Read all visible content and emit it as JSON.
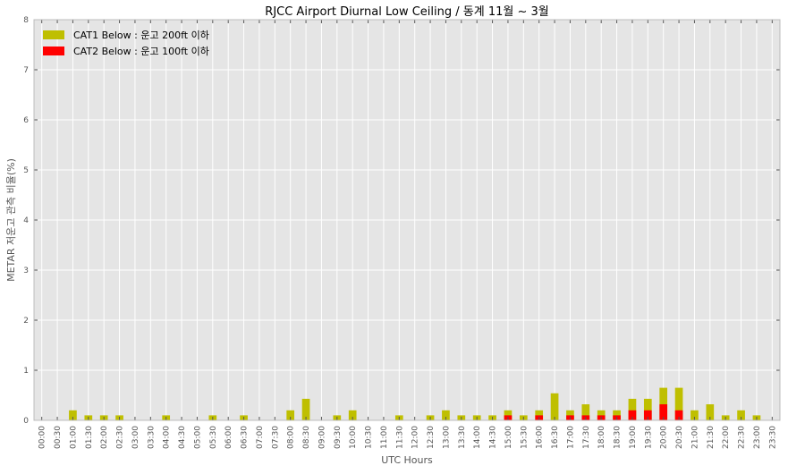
{
  "chart_data": {
    "type": "bar",
    "stacked": true,
    "title": "RJCC Airport Diurnal Low Ceiling / 동계 11월 ~ 3월",
    "xlabel": "UTC Hours",
    "ylabel": "METAR 저운고 관측 비율(%)",
    "ylim": [
      0,
      8
    ],
    "yticks": [
      "0",
      "1",
      "2",
      "3",
      "4",
      "5",
      "6",
      "7",
      "8"
    ],
    "grid": true,
    "legend_position": "top-left",
    "categories": [
      "00:00",
      "00:30",
      "01:00",
      "01:30",
      "02:00",
      "02:30",
      "03:00",
      "03:30",
      "04:00",
      "04:30",
      "05:00",
      "05:30",
      "06:00",
      "06:30",
      "07:00",
      "07:30",
      "08:00",
      "08:30",
      "09:00",
      "09:30",
      "10:00",
      "10:30",
      "11:00",
      "11:30",
      "12:00",
      "12:30",
      "13:00",
      "13:30",
      "14:00",
      "14:30",
      "15:00",
      "15:30",
      "16:00",
      "16:30",
      "17:00",
      "17:30",
      "18:00",
      "18:30",
      "19:00",
      "19:30",
      "20:00",
      "20:30",
      "21:00",
      "21:30",
      "22:00",
      "22:30",
      "23:00",
      "23:30"
    ],
    "series": [
      {
        "name": "CAT1 Below : 운고 200ft 이하",
        "color": "#bfbf00",
        "values": [
          0,
          0,
          0.2,
          0.1,
          0.1,
          0.1,
          0,
          0,
          0.1,
          0,
          0,
          0.1,
          0,
          0.1,
          0,
          0,
          0.2,
          0.43,
          0,
          0.1,
          0.2,
          0,
          0,
          0.1,
          0,
          0.1,
          0.2,
          0.1,
          0.1,
          0.1,
          0.2,
          0.1,
          0.2,
          0.54,
          0.2,
          0.32,
          0.2,
          0.2,
          0.43,
          0.43,
          0.65,
          0.65,
          0.2,
          0.32,
          0.1,
          0.2,
          0.1,
          0
        ]
      },
      {
        "name": "CAT2 Below : 운고 100ft 이하",
        "color": "#ff0000",
        "values": [
          0,
          0,
          0,
          0,
          0,
          0,
          0,
          0,
          0,
          0,
          0,
          0,
          0,
          0,
          0,
          0,
          0,
          0,
          0,
          0,
          0,
          0,
          0,
          0,
          0,
          0,
          0,
          0,
          0,
          0,
          0.1,
          0,
          0.1,
          0,
          0.1,
          0.1,
          0.1,
          0.1,
          0.2,
          0.2,
          0.32,
          0.2,
          0,
          0,
          0,
          0,
          0,
          0
        ]
      }
    ]
  },
  "colors": {
    "plot_background": "#e5e5e5",
    "grid": "#ffffff"
  }
}
